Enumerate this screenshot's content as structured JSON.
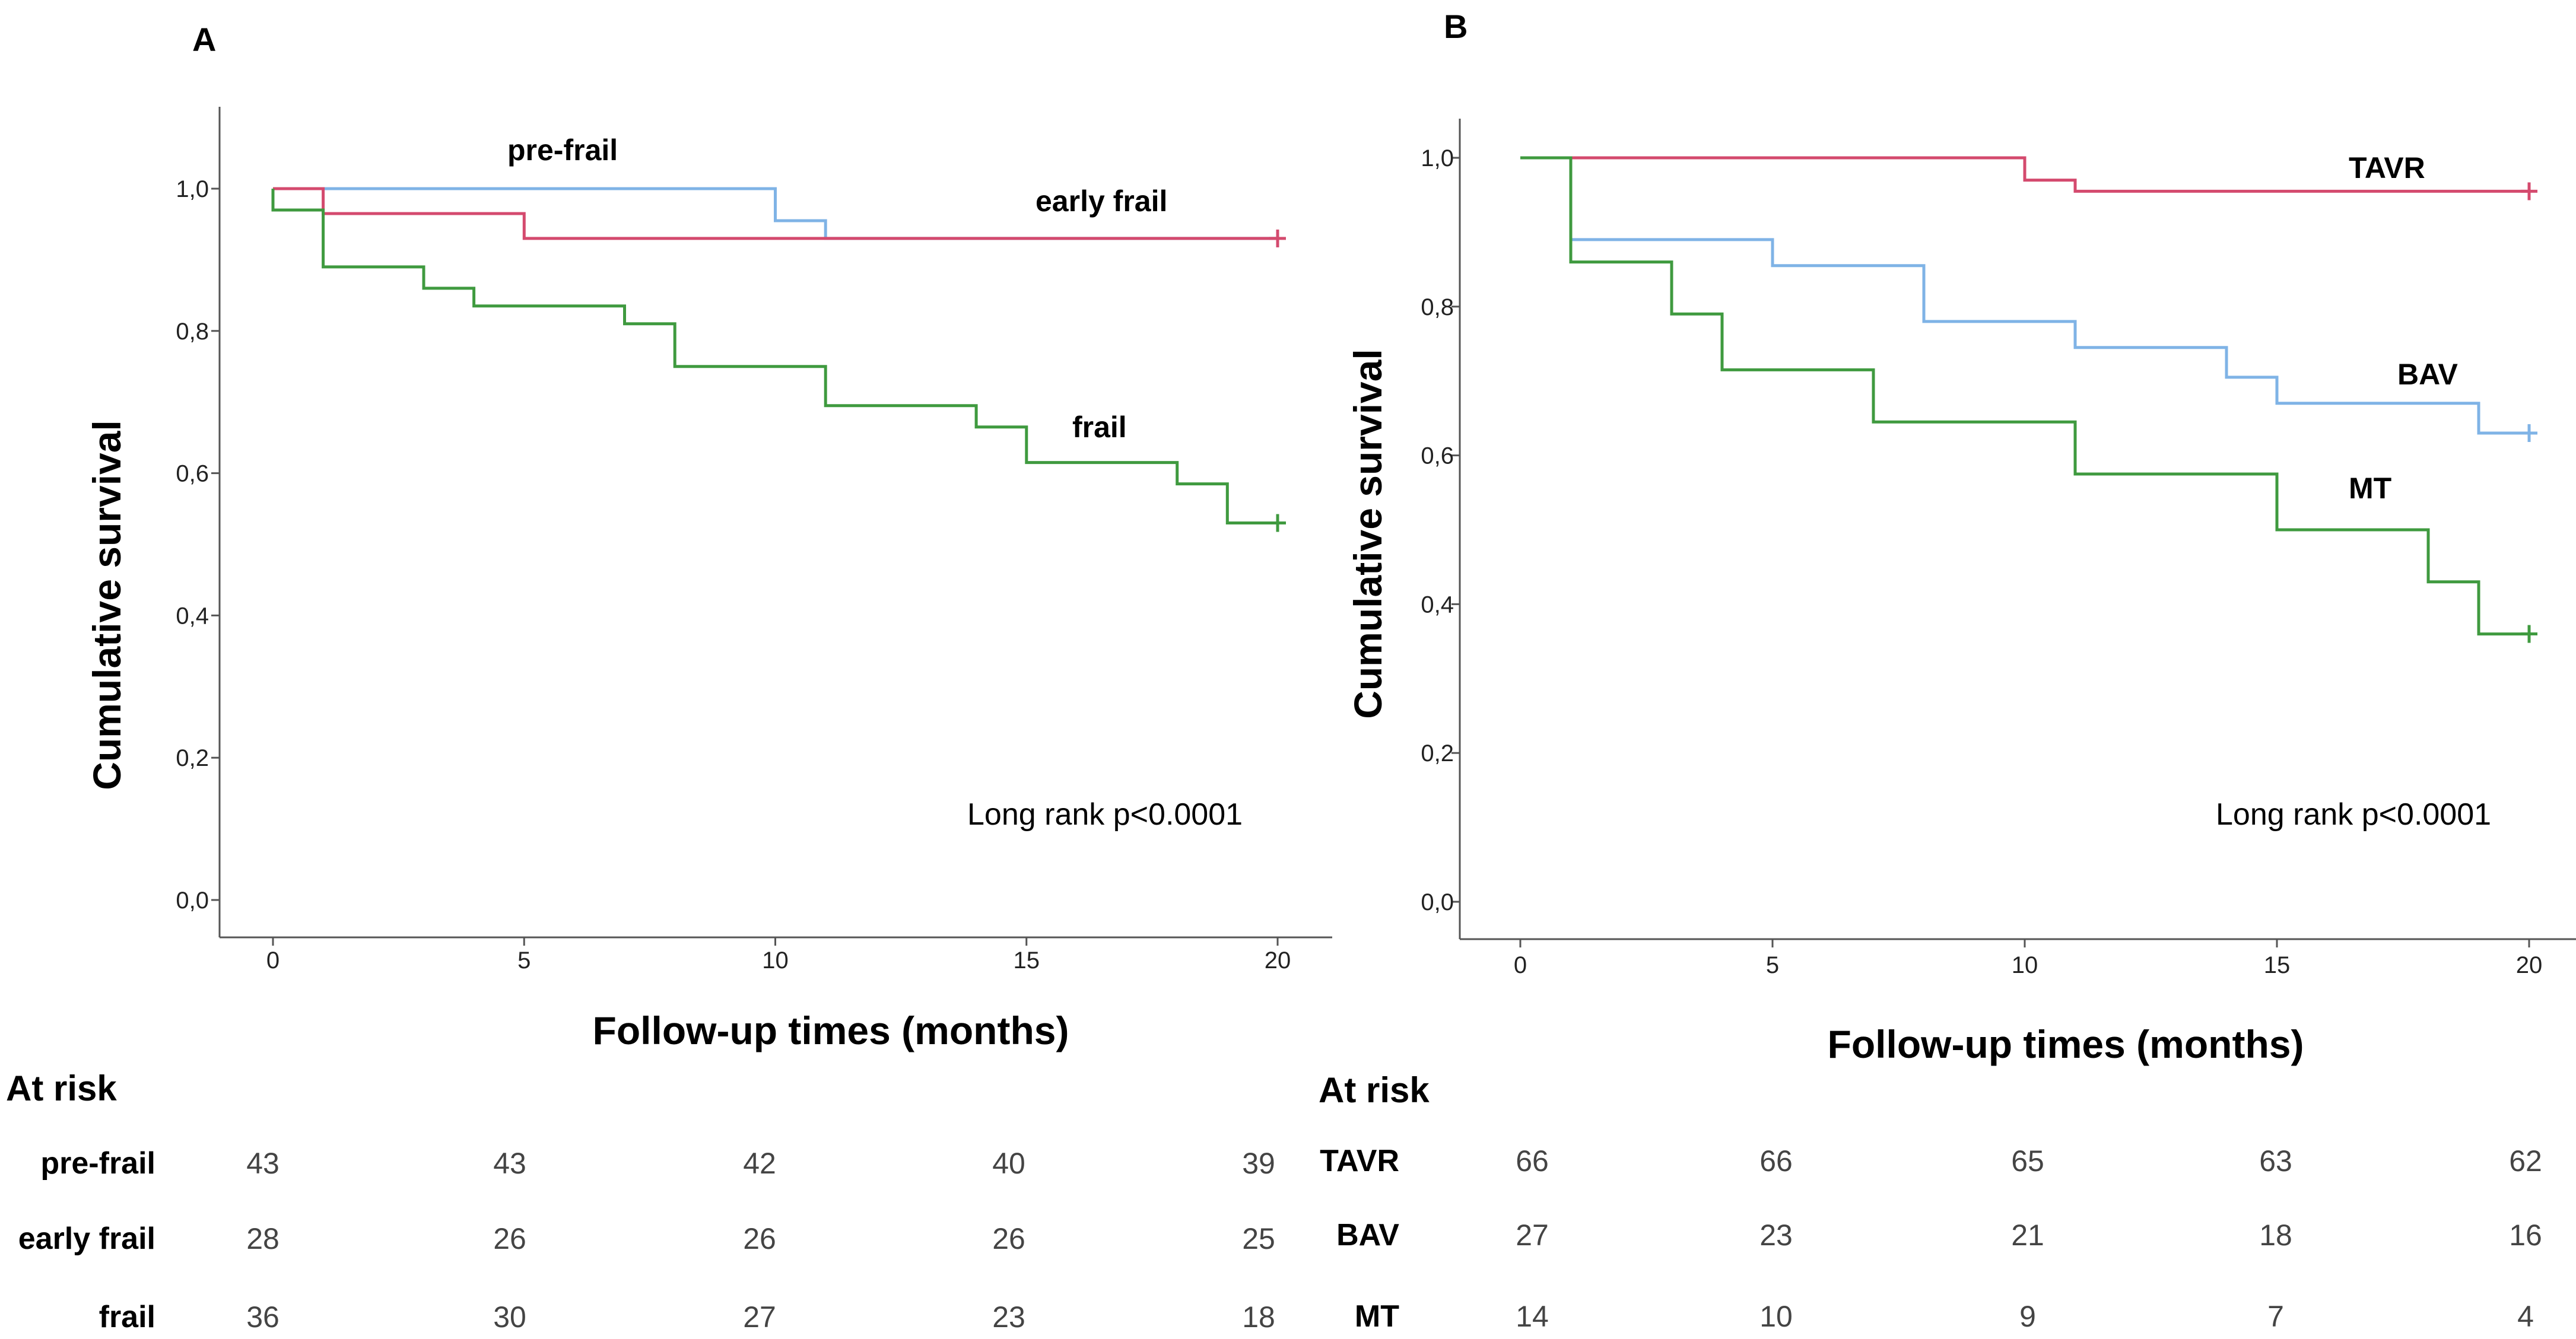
{
  "chart_data": [
    {
      "type": "line",
      "panel": "A",
      "xlabel": "Follow-up times (months)",
      "ylabel": "Cumulative survival",
      "xlim": [
        0,
        20
      ],
      "ylim": [
        0,
        1
      ],
      "xticks": [
        "0",
        "5",
        "10",
        "15",
        "20"
      ],
      "yticks": [
        "0,0",
        "0,2",
        "0,4",
        "0,6",
        "0,8",
        "1,0"
      ],
      "annotation": "Long rank p<0.0001",
      "series": [
        {
          "name": "pre-frail",
          "color": "#7fb3e6",
          "censor": false,
          "x": [
            0,
            10,
            10,
            11,
            11,
            20
          ],
          "y": [
            1.0,
            1.0,
            0.955,
            0.955,
            0.93,
            0.93
          ]
        },
        {
          "name": "early frail",
          "color": "#d44a6e",
          "censor": true,
          "x": [
            0,
            1,
            1,
            5,
            5,
            20
          ],
          "y": [
            1.0,
            1.0,
            0.965,
            0.965,
            0.93,
            0.93
          ]
        },
        {
          "name": "frail",
          "color": "#3f9a3f",
          "censor": true,
          "x": [
            0,
            0,
            1,
            1,
            3,
            3,
            4,
            4,
            7,
            7,
            8,
            8,
            11,
            11,
            14,
            14,
            15,
            15,
            18,
            18,
            19,
            19,
            20
          ],
          "y": [
            1.0,
            0.97,
            0.97,
            0.89,
            0.89,
            0.86,
            0.86,
            0.835,
            0.835,
            0.81,
            0.81,
            0.75,
            0.75,
            0.695,
            0.695,
            0.665,
            0.665,
            0.615,
            0.615,
            0.585,
            0.585,
            0.53,
            0.53
          ]
        }
      ],
      "at_risk": {
        "title": "At risk",
        "rows": [
          {
            "name": "pre-frail",
            "values": [
              "43",
              "43",
              "42",
              "40",
              "39"
            ]
          },
          {
            "name": "early frail",
            "values": [
              "28",
              "26",
              "26",
              "26",
              "25"
            ]
          },
          {
            "name": "frail",
            "values": [
              "36",
              "30",
              "27",
              "23",
              "18"
            ]
          }
        ]
      }
    },
    {
      "type": "line",
      "panel": "B",
      "xlabel": "Follow-up times (months)",
      "ylabel": "Cumulative survival",
      "xlim": [
        0,
        20
      ],
      "ylim": [
        0,
        1
      ],
      "xticks": [
        "0",
        "5",
        "10",
        "15",
        "20"
      ],
      "yticks": [
        "0,0",
        "0,2",
        "0,4",
        "0,6",
        "0,8",
        "1,0"
      ],
      "annotation": "Long rank p<0.0001",
      "series": [
        {
          "name": "TAVR",
          "color": "#d44a6e",
          "censor": true,
          "x": [
            0,
            10,
            10,
            11,
            11,
            20
          ],
          "y": [
            1.0,
            1.0,
            0.97,
            0.97,
            0.955,
            0.955
          ]
        },
        {
          "name": "BAV",
          "color": "#7fb3e6",
          "censor": true,
          "x": [
            0,
            1,
            1,
            5,
            5,
            8,
            8,
            11,
            11,
            14,
            14,
            15,
            15,
            19,
            19,
            20
          ],
          "y": [
            1.0,
            1.0,
            0.89,
            0.89,
            0.855,
            0.855,
            0.78,
            0.78,
            0.745,
            0.745,
            0.705,
            0.705,
            0.67,
            0.67,
            0.63,
            0.63
          ]
        },
        {
          "name": "MT",
          "color": "#3f9a3f",
          "censor": true,
          "x": [
            0,
            1,
            1,
            3,
            3,
            4,
            4,
            7,
            7,
            11,
            11,
            15,
            15,
            18,
            18,
            19,
            19,
            20
          ],
          "y": [
            1.0,
            1.0,
            0.86,
            0.86,
            0.79,
            0.79,
            0.715,
            0.715,
            0.645,
            0.645,
            0.575,
            0.575,
            0.5,
            0.5,
            0.43,
            0.43,
            0.36,
            0.36
          ]
        }
      ],
      "at_risk": {
        "title": "At risk",
        "rows": [
          {
            "name": "TAVR",
            "values": [
              "66",
              "66",
              "65",
              "63",
              "62"
            ]
          },
          {
            "name": "BAV",
            "values": [
              "27",
              "23",
              "21",
              "18",
              "16"
            ]
          },
          {
            "name": "MT",
            "values": [
              "14",
              "10",
              "9",
              "7",
              "4"
            ]
          }
        ]
      }
    }
  ]
}
